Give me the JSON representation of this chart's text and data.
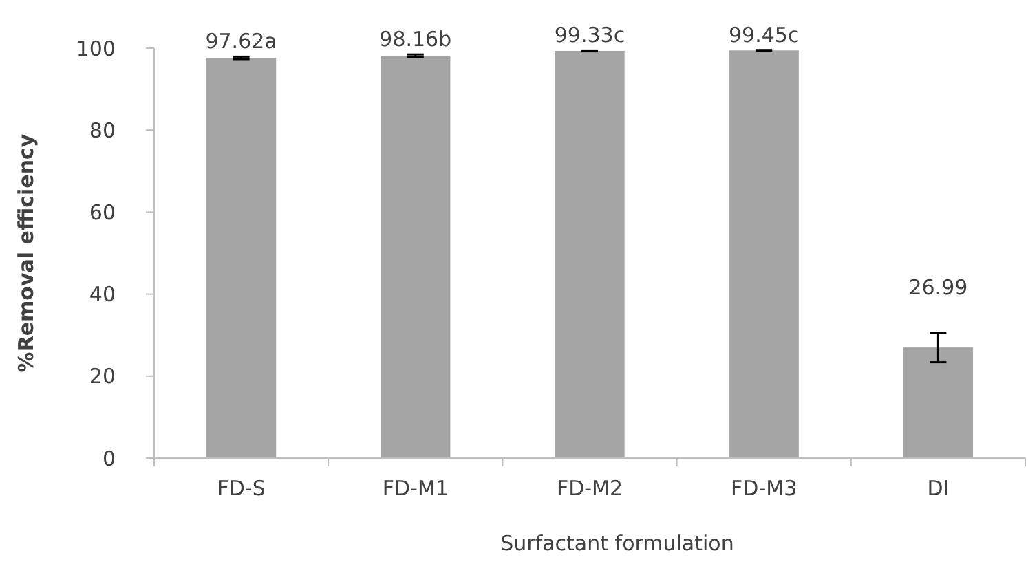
{
  "chart_data": {
    "type": "bar",
    "xlabel": "Surfactant formulation",
    "ylabel": "%Removal efficiency",
    "categories": [
      "FD-S",
      "FD-M1",
      "FD-M2",
      "FD-M3",
      "DI"
    ],
    "values": [
      97.62,
      98.16,
      99.33,
      99.45,
      26.99
    ],
    "errors": [
      0.3,
      0.3,
      0.1,
      0.1,
      3.6
    ],
    "value_labels": [
      "97.62a",
      "98.16b",
      "99.33c",
      "99.45c",
      "26.99"
    ],
    "color": "#a5a5a5",
    "ylim": [
      0,
      100
    ],
    "yticks": [
      0,
      20,
      40,
      60,
      80,
      100
    ],
    "grid": false
  }
}
